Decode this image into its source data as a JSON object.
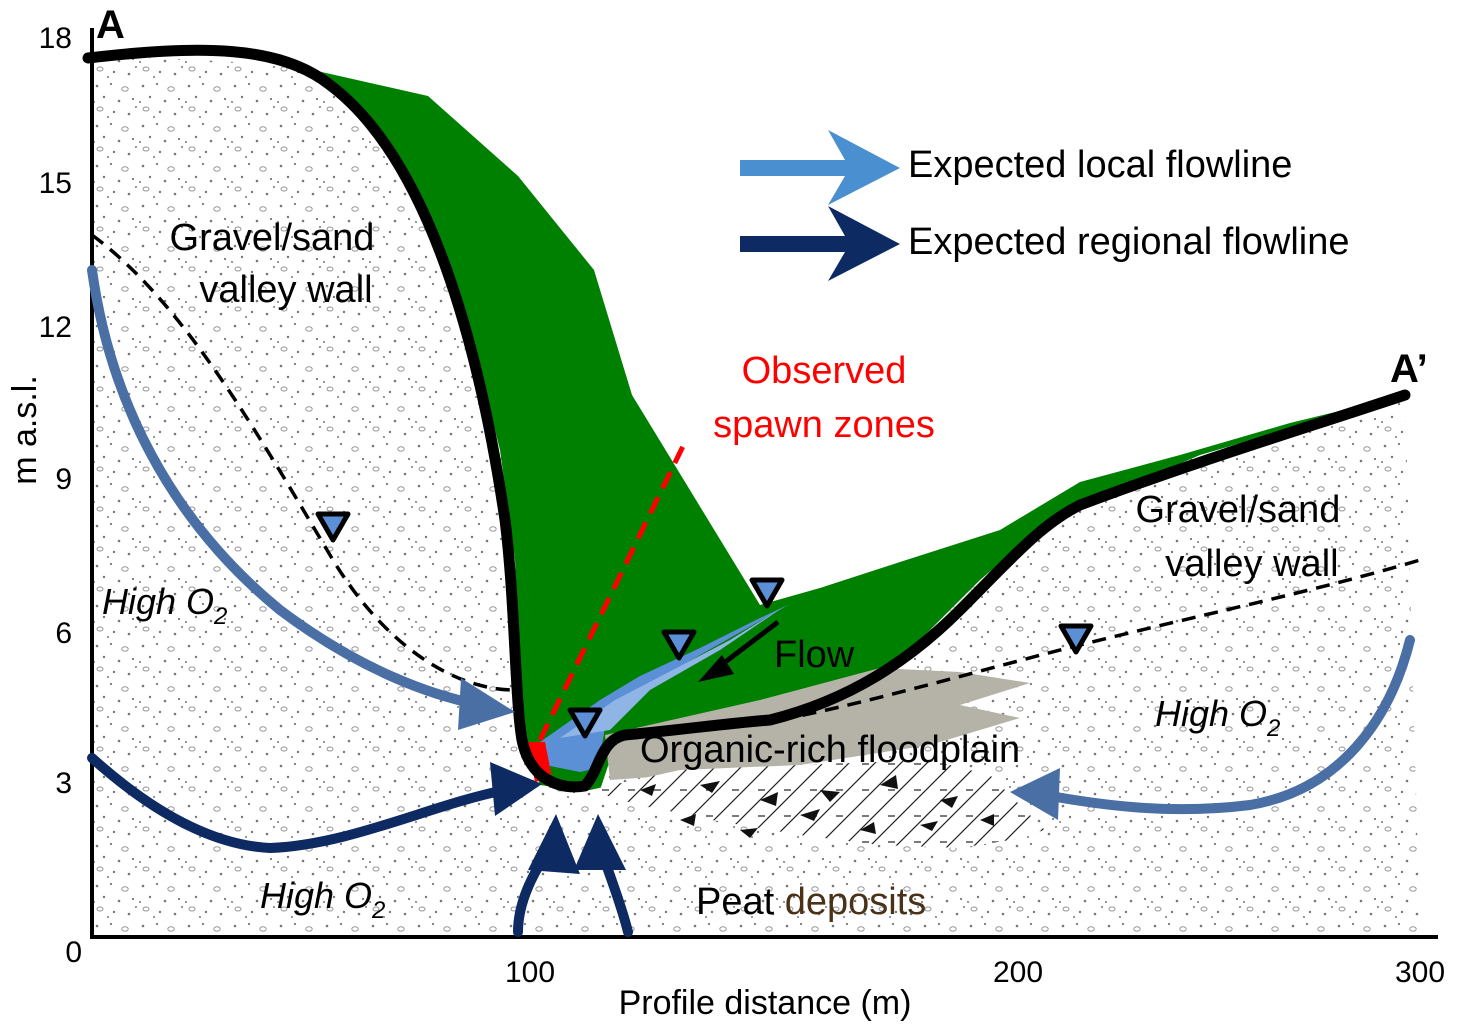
{
  "colors": {
    "vegetation": "#008000",
    "local_flow": "#4a6fa5",
    "regional_flow": "#0d2a63",
    "spawn_zone": "#ff0000",
    "floodplain": "#b5b3a8",
    "ground_line": "#000000",
    "stream_fill": "#5b8fd6"
  },
  "axes": {
    "y_label": "m a.s.l.",
    "x_label": "Profile distance (m)",
    "y_ticks": [
      "18",
      "15",
      "12",
      "9",
      "6",
      "3",
      "0"
    ],
    "x_ticks": [
      "100",
      "200",
      "300"
    ]
  },
  "section_labels": {
    "start": "A",
    "end": "A’"
  },
  "legend": {
    "local": "Expected local flowline",
    "regional": "Expected regional flowline"
  },
  "annotations": {
    "left_wall_line1": "Gravel/sand",
    "left_wall_line2": "valley wall",
    "right_wall_line1": "Gravel/sand",
    "right_wall_line2": "valley wall",
    "spawn_line1": "Observed",
    "spawn_line2": "spawn zones",
    "flow": "Flow",
    "floodplain": "Organic-rich floodplain",
    "peat_word1": "Peat",
    "peat_word2": "deposits",
    "high_o2_left_mid": "High O",
    "high_o2_left_bottom": "High O",
    "high_o2_right": "High O",
    "o2_subscript": "2"
  },
  "icons": {
    "water_table_marker": "triangle-down-icon",
    "flow_arrow": "arrow-icon"
  }
}
